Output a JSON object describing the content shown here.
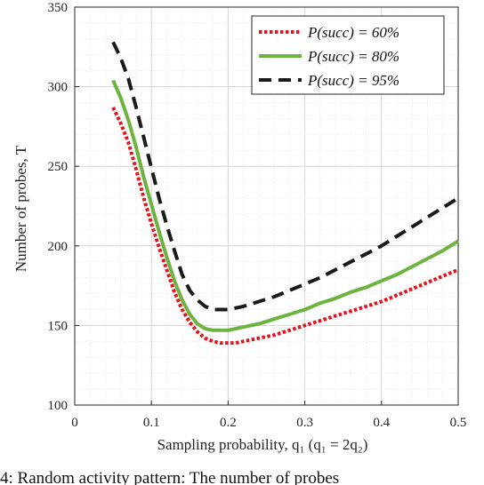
{
  "chart_data": {
    "type": "line",
    "xlabel": "Sampling probability, q₁ (q₁ = 2q₂)",
    "ylabel": "Number of probes, T",
    "xlim": [
      0,
      0.5
    ],
    "ylim": [
      100,
      350
    ],
    "xticks": [
      "0",
      "0.1",
      "0.2",
      "0.3",
      "0.4",
      "0.5"
    ],
    "yticks": [
      "100",
      "150",
      "200",
      "250",
      "300",
      "350"
    ],
    "grid": true,
    "legend_position": "top-right",
    "series": [
      {
        "name": "P(succ) = 60%",
        "color": "#e8101a",
        "style": "dotted",
        "x": [
          0.05,
          0.06,
          0.07,
          0.08,
          0.09,
          0.1,
          0.11,
          0.12,
          0.13,
          0.14,
          0.15,
          0.16,
          0.17,
          0.18,
          0.19,
          0.2,
          0.21,
          0.22,
          0.24,
          0.26,
          0.28,
          0.3,
          0.32,
          0.34,
          0.36,
          0.38,
          0.4,
          0.42,
          0.44,
          0.46,
          0.48,
          0.5
        ],
        "y": [
          287,
          277,
          265,
          248,
          230,
          214,
          199,
          185,
          171,
          160,
          152,
          146,
          142,
          140,
          139,
          139,
          139,
          140,
          142,
          144,
          147,
          150,
          153,
          156,
          159,
          162,
          165,
          169,
          173,
          177,
          181,
          185
        ]
      },
      {
        "name": "P(succ) = 80%",
        "color": "#6db33f",
        "style": "solid",
        "x": [
          0.05,
          0.06,
          0.07,
          0.08,
          0.09,
          0.1,
          0.11,
          0.12,
          0.13,
          0.14,
          0.15,
          0.16,
          0.17,
          0.18,
          0.19,
          0.2,
          0.21,
          0.22,
          0.24,
          0.26,
          0.28,
          0.3,
          0.32,
          0.34,
          0.36,
          0.38,
          0.4,
          0.42,
          0.44,
          0.46,
          0.48,
          0.5
        ],
        "y": [
          304,
          293,
          279,
          262,
          243,
          226,
          209,
          193,
          178,
          166,
          157,
          151,
          148,
          147,
          147,
          147,
          148,
          149,
          151,
          154,
          157,
          160,
          164,
          167,
          171,
          174,
          178,
          182,
          187,
          192,
          197,
          203
        ]
      },
      {
        "name": "P(succ) = 95%",
        "color": "#1a1a1a",
        "style": "dashed",
        "x": [
          0.05,
          0.06,
          0.07,
          0.08,
          0.09,
          0.1,
          0.11,
          0.12,
          0.13,
          0.14,
          0.15,
          0.16,
          0.17,
          0.18,
          0.19,
          0.2,
          0.21,
          0.22,
          0.24,
          0.26,
          0.28,
          0.3,
          0.32,
          0.34,
          0.36,
          0.38,
          0.4,
          0.42,
          0.44,
          0.46,
          0.48,
          0.5
        ],
        "y": [
          328,
          318,
          305,
          287,
          268,
          249,
          230,
          213,
          197,
          182,
          172,
          166,
          162,
          160,
          160,
          160,
          161,
          162,
          165,
          168,
          172,
          176,
          180,
          185,
          190,
          195,
          200,
          206,
          212,
          218,
          224,
          230
        ]
      }
    ]
  },
  "caption": "4: Random activity pattern: The number of probes"
}
